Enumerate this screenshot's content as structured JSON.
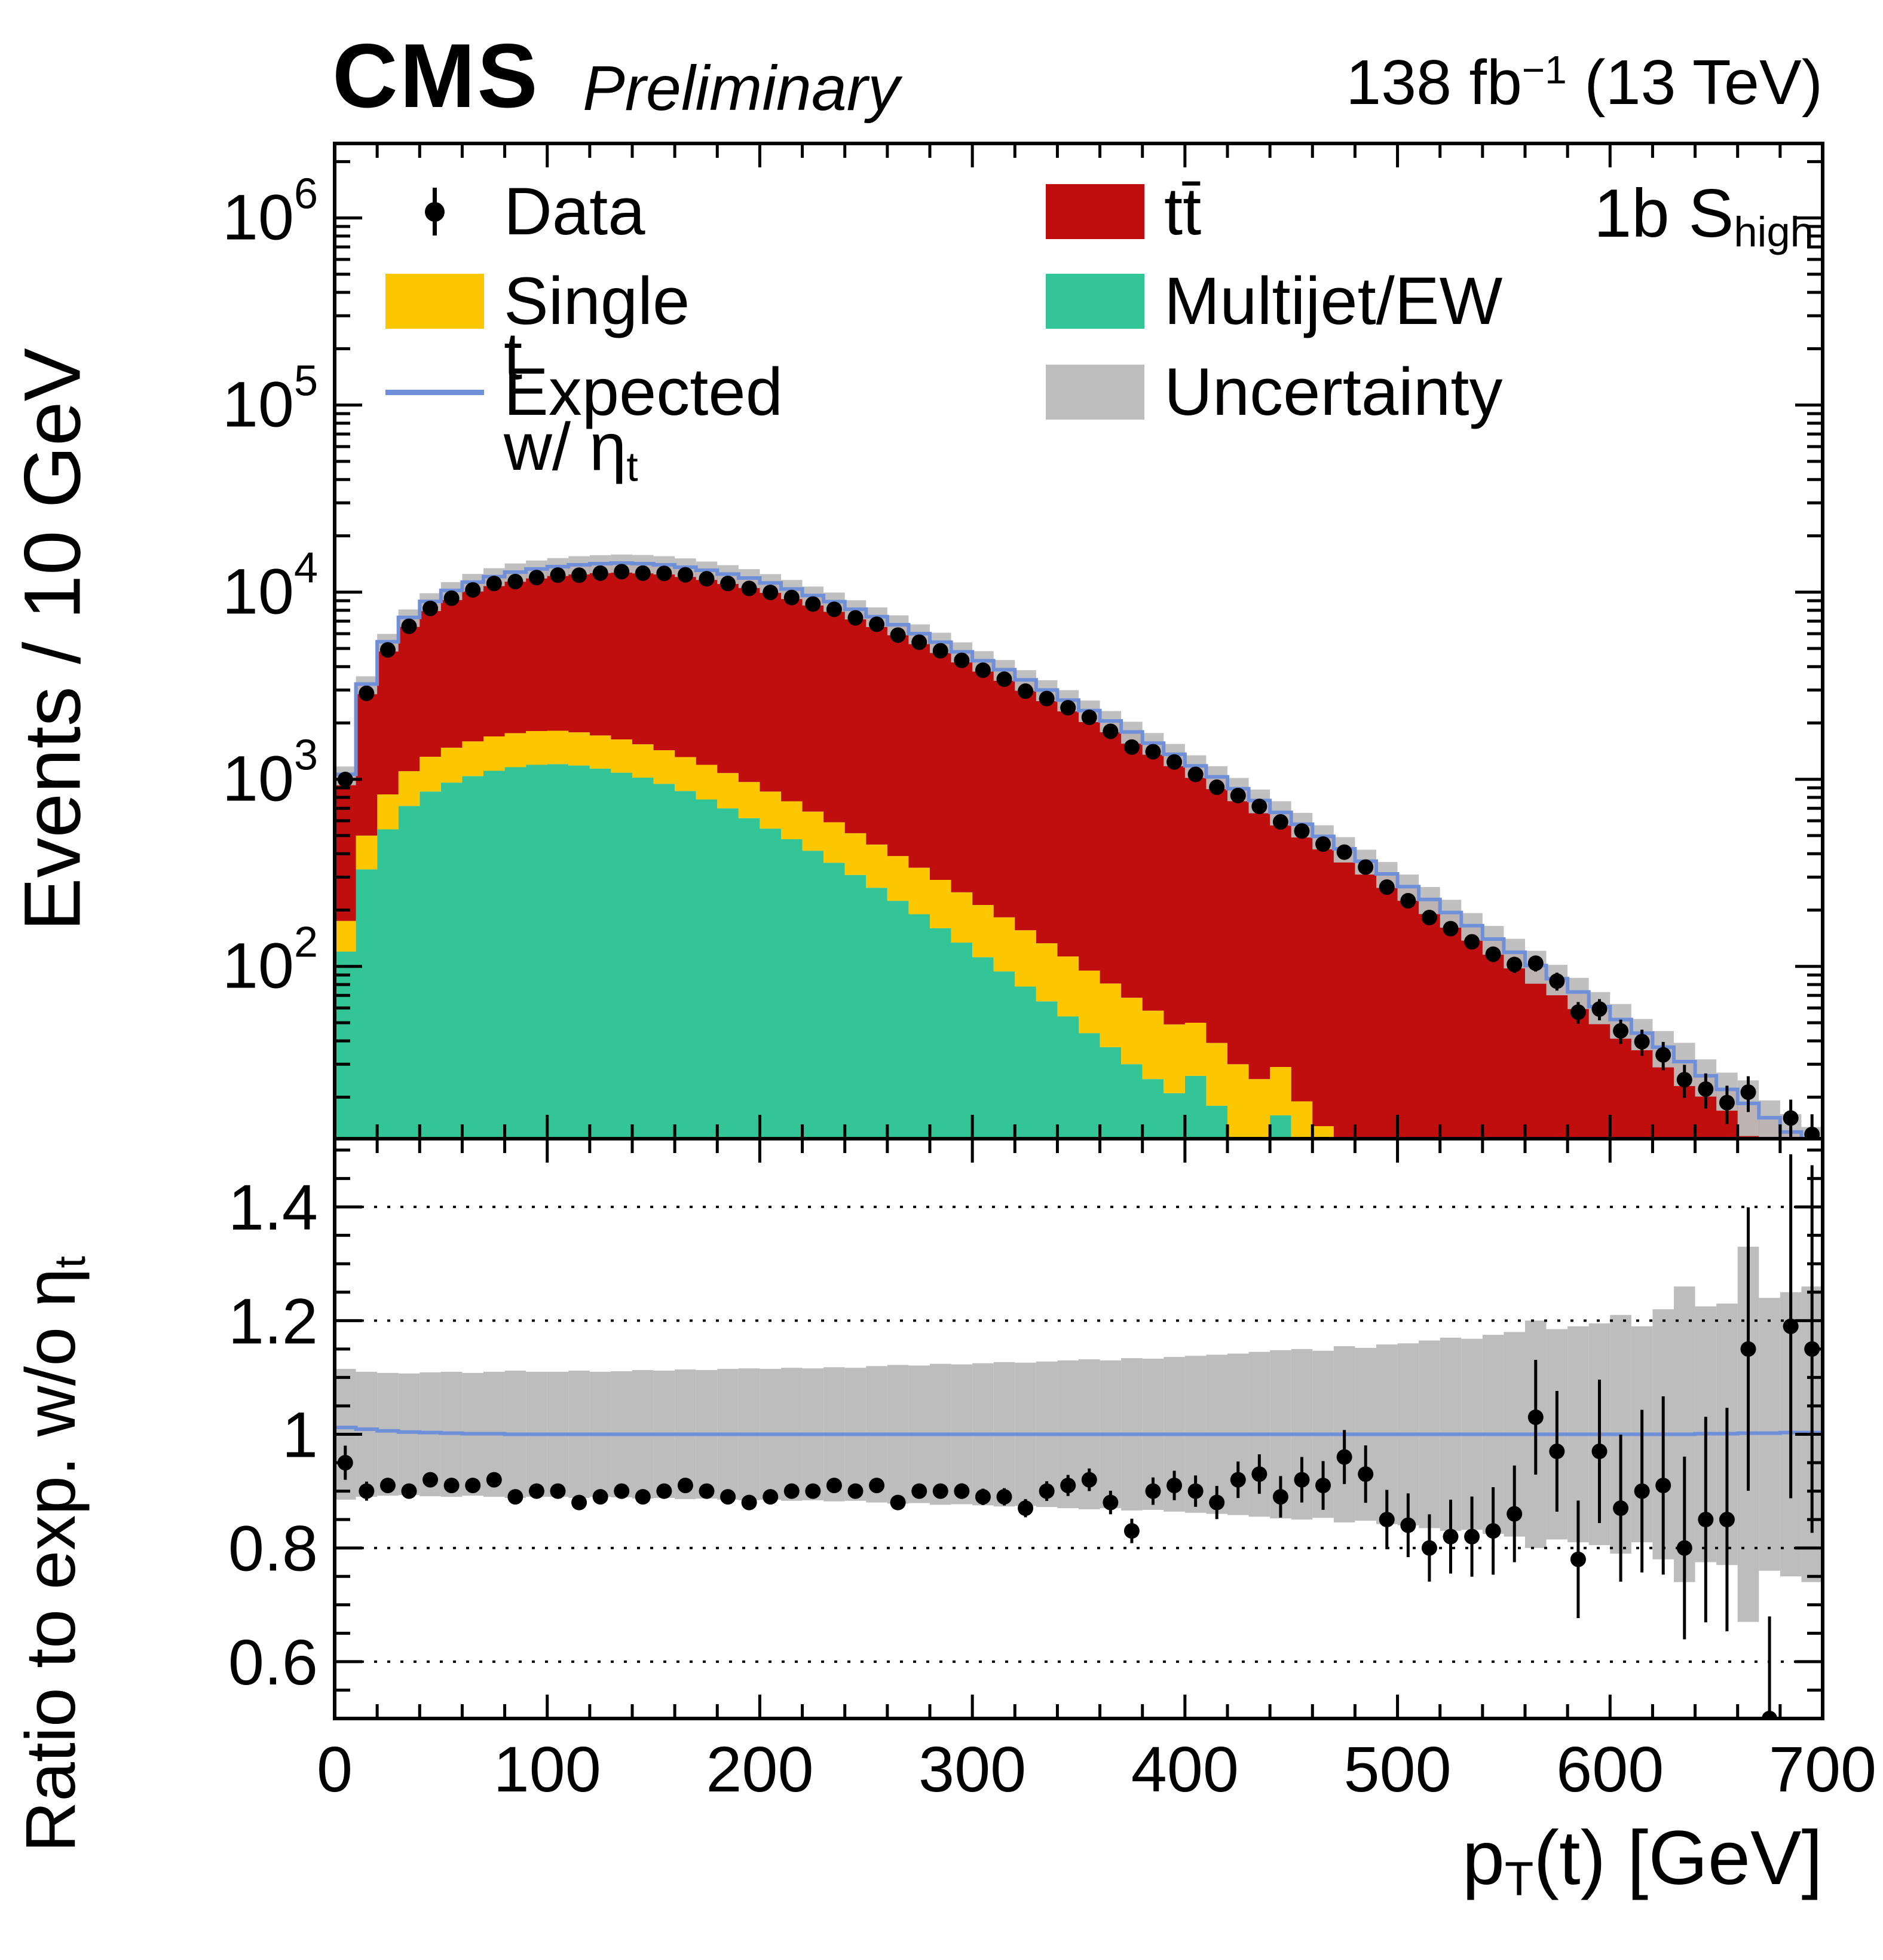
{
  "header": {
    "experiment": "CMS",
    "status": "Preliminary",
    "lumi_pre": "138 fb",
    "lumi_sup": "−1",
    "lumi_post": " (13 TeV)"
  },
  "region_label": {
    "pre": "1b S",
    "sub": "high"
  },
  "axes": {
    "y_label": "Events / 10 GeV",
    "ratio_label_pre": "Ratio to exp. w/o η",
    "ratio_label_sub": "t",
    "x_label_pre": "p",
    "x_label_sub": "T",
    "x_label_post": "(t) [GeV]"
  },
  "legend": {
    "data": "Data",
    "ttbar": "tt̄",
    "singlet": "Single t",
    "multijet": "Multijet/EW",
    "expected_pre": "Expected w/ η",
    "expected_sub": "t",
    "uncertainty": "Uncertainty"
  },
  "colors": {
    "ttbar": "#c00d0d",
    "singlet": "#fdc700",
    "multijet": "#33c497",
    "uncertainty": "#bdbdbd",
    "expected_line": "#6f8fd8",
    "data": "#000000",
    "frame": "#000000"
  },
  "chart_data": {
    "type": "stacked_histogram_with_ratio",
    "bin_width": 10,
    "x_range": [
      0,
      700
    ],
    "y_range": [
      12,
      2500000
    ],
    "ratio_range": [
      0.5,
      1.52
    ],
    "x_major_ticks": [
      0,
      100,
      200,
      300,
      400,
      500,
      600,
      700
    ],
    "x_minor_step": 20,
    "y_tick_exponents": [
      2,
      3,
      4,
      5,
      6
    ],
    "ratio_ticks": [
      0.6,
      0.8,
      1,
      1.2,
      1.4
    ],
    "ratio_tick_labels": [
      "0.6",
      "0.8",
      "1",
      "1.2",
      "1.4"
    ],
    "ratio_dotted_lines": [
      0.6,
      0.8,
      1.2,
      1.4
    ],
    "ratio_minor_step": 0.05,
    "series_order_bottom_to_top": [
      "multijet",
      "singlet",
      "ttbar"
    ],
    "multijet": [
      120,
      330,
      540,
      720,
      860,
      960,
      1040,
      1110,
      1160,
      1195,
      1205,
      1185,
      1140,
      1085,
      1020,
      945,
      865,
      780,
      700,
      620,
      545,
      478,
      415,
      358,
      308,
      263,
      224,
      190,
      160,
      134,
      112,
      94,
      78,
      65,
      54,
      44,
      37,
      30,
      25,
      21,
      26,
      18,
      12,
      10,
      16,
      8,
      5,
      0,
      0,
      0,
      0,
      0,
      0,
      0,
      0,
      0,
      0,
      0,
      0,
      0,
      0,
      0,
      0,
      0,
      0,
      0,
      0,
      0,
      0,
      0
    ],
    "singlet": [
      55,
      170,
      290,
      385,
      460,
      515,
      555,
      585,
      605,
      615,
      612,
      598,
      575,
      548,
      518,
      485,
      450,
      415,
      380,
      347,
      315,
      285,
      257,
      231,
      207,
      185,
      165,
      147,
      130,
      115,
      101,
      89,
      78,
      68,
      59,
      51,
      44,
      38,
      33,
      28,
      24,
      21,
      18,
      15,
      13,
      11,
      9,
      8,
      7,
      6,
      5,
      4.5,
      4,
      3.5,
      3,
      2.6,
      2.2,
      1.9,
      1.6,
      1.4,
      1.2,
      1,
      0.9,
      0.8,
      0.7,
      0.6,
      0.5,
      0.4,
      0.35,
      0.3
    ],
    "total": [
      1050,
      3200,
      5400,
      7300,
      8900,
      10200,
      11300,
      12100,
      12800,
      13300,
      13700,
      14000,
      14200,
      14300,
      14200,
      14000,
      13600,
      13100,
      12500,
      11900,
      11200,
      10400,
      9600,
      8900,
      8100,
      7400,
      6700,
      6000,
      5400,
      4800,
      4300,
      3850,
      3400,
      3000,
      2650,
      2330,
      2050,
      1790,
      1560,
      1360,
      1180,
      1030,
      890,
      770,
      665,
      575,
      495,
      425,
      365,
      312,
      267,
      228,
      194,
      165,
      140,
      119,
      101,
      86,
      73,
      61,
      52,
      44,
      37,
      31,
      26,
      22,
      18.5,
      15.5,
      13,
      11
    ],
    "data_ratio": [
      0.95,
      0.9,
      0.91,
      0.9,
      0.92,
      0.91,
      0.91,
      0.92,
      0.89,
      0.9,
      0.9,
      0.88,
      0.89,
      0.9,
      0.89,
      0.9,
      0.91,
      0.9,
      0.89,
      0.88,
      0.89,
      0.9,
      0.9,
      0.91,
      0.9,
      0.91,
      0.88,
      0.9,
      0.9,
      0.9,
      0.89,
      0.89,
      0.87,
      0.9,
      0.91,
      0.92,
      0.88,
      0.83,
      0.9,
      0.91,
      0.9,
      0.88,
      0.92,
      0.93,
      0.89,
      0.92,
      0.91,
      0.96,
      0.93,
      0.85,
      0.84,
      0.8,
      0.82,
      0.82,
      0.83,
      0.86,
      1.03,
      0.97,
      0.78,
      0.97,
      0.87,
      0.9,
      0.91,
      0.8,
      0.85,
      0.85,
      1.15,
      0.5,
      1.19,
      1.15
    ],
    "frac_uncertainty": [
      0.115,
      0.11,
      0.108,
      0.107,
      0.109,
      0.11,
      0.108,
      0.11,
      0.112,
      0.11,
      0.11,
      0.112,
      0.11,
      0.111,
      0.113,
      0.112,
      0.114,
      0.113,
      0.115,
      0.116,
      0.115,
      0.117,
      0.116,
      0.118,
      0.117,
      0.12,
      0.122,
      0.121,
      0.124,
      0.123,
      0.125,
      0.127,
      0.126,
      0.128,
      0.13,
      0.132,
      0.13,
      0.134,
      0.133,
      0.136,
      0.138,
      0.14,
      0.142,
      0.145,
      0.148,
      0.15,
      0.147,
      0.155,
      0.152,
      0.158,
      0.16,
      0.165,
      0.17,
      0.168,
      0.175,
      0.18,
      0.2,
      0.185,
      0.19,
      0.195,
      0.21,
      0.19,
      0.22,
      0.26,
      0.225,
      0.23,
      0.33,
      0.24,
      0.25,
      0.26
    ],
    "expected_ratio": [
      1.012,
      1.009,
      1.006,
      1.004,
      1.003,
      1.002,
      1.001,
      1.001,
      1.0,
      1.0,
      1.0,
      1.0,
      1.0,
      1.0,
      1.0,
      1.0,
      1.0,
      1.0,
      1.0,
      1.0,
      1.0,
      1.0,
      1.0,
      1.0,
      1.0,
      1.0,
      1.0,
      1.0,
      1.0,
      1.0,
      1.0,
      1.0,
      1.0,
      1.0,
      1.0,
      1.0,
      1.0,
      1.0,
      1.0,
      1.0,
      1.0,
      1.0,
      1.0,
      1.0,
      1.0,
      1.0,
      1.0,
      1.0,
      1.0,
      1.0,
      1.0,
      1.0,
      1.0,
      1.0,
      1.0,
      1.0,
      1.0,
      1.0,
      1.0,
      1.0,
      1.0,
      1.0,
      1.0,
      1.0,
      1.001,
      1.001,
      1.002,
      1.002,
      1.003,
      1.003
    ]
  }
}
